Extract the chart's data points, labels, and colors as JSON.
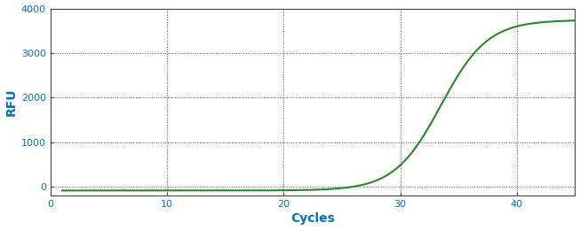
{
  "title": "",
  "xlabel": "Cycles",
  "ylabel": "RFU",
  "xlim": [
    0,
    45
  ],
  "ylim": [
    -200,
    4000
  ],
  "yticks": [
    0,
    1000,
    2000,
    3000,
    4000
  ],
  "xticks": [
    0,
    10,
    20,
    30,
    40
  ],
  "line_color": "#228B22",
  "line_width": 1.5,
  "sigmoid_L": 3820,
  "sigmoid_k": 0.5,
  "sigmoid_x0": 33.5,
  "sigmoid_baseline": -80,
  "x_start": 1,
  "x_end": 45,
  "background_color": "#ffffff",
  "grid_color": "#555555",
  "grid_linestyle": "dotted",
  "grid_linewidth": 0.7,
  "spine_color": "#444444",
  "tick_label_color": "#0070C0",
  "axis_label_color": "#0070C0",
  "tick_fontsize": 8,
  "axis_label_fontsize": 10
}
